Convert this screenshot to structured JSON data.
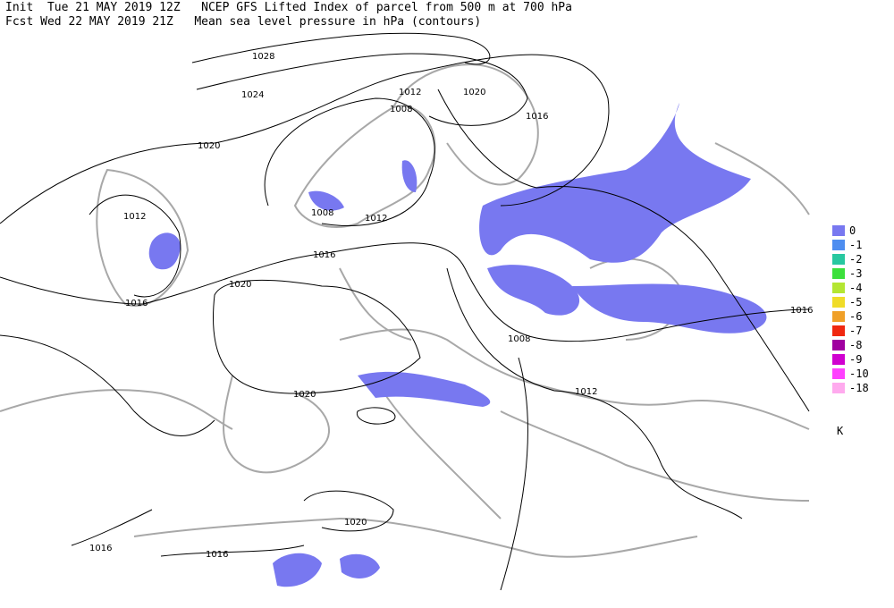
{
  "header": {
    "line1": "Init  Tue 21 MAY 2019 12Z   NCEP GFS Lifted Index of parcel from 500 m at 700 hPa",
    "line2": "Fcst Wed 22 MAY 2019 21Z   Mean sea level pressure in hPa (contours)"
  },
  "contour_labels": [
    1028,
    1024,
    1020,
    1012,
    1008,
    1020,
    1016,
    1012,
    1008,
    1012,
    1016,
    1016,
    1020,
    1008,
    1020,
    1012,
    1016,
    1020,
    1016,
    1016
  ],
  "legend": {
    "items": [
      {
        "label": "0",
        "color": "#7878f0"
      },
      {
        "label": "-1",
        "color": "#4e8ef0"
      },
      {
        "label": "-2",
        "color": "#28c8a0"
      },
      {
        "label": "-3",
        "color": "#3ce03c"
      },
      {
        "label": "-4",
        "color": "#b4e632"
      },
      {
        "label": "-5",
        "color": "#f0dc28"
      },
      {
        "label": "-6",
        "color": "#f0a028"
      },
      {
        "label": "-7",
        "color": "#f02810"
      },
      {
        "label": "-8",
        "color": "#a000a0"
      },
      {
        "label": "-9",
        "color": "#d000d0"
      },
      {
        "label": "-10",
        "color": "#ff40ff"
      },
      {
        "label": "-18",
        "color": "#ffaaee"
      }
    ],
    "unit": "K"
  }
}
